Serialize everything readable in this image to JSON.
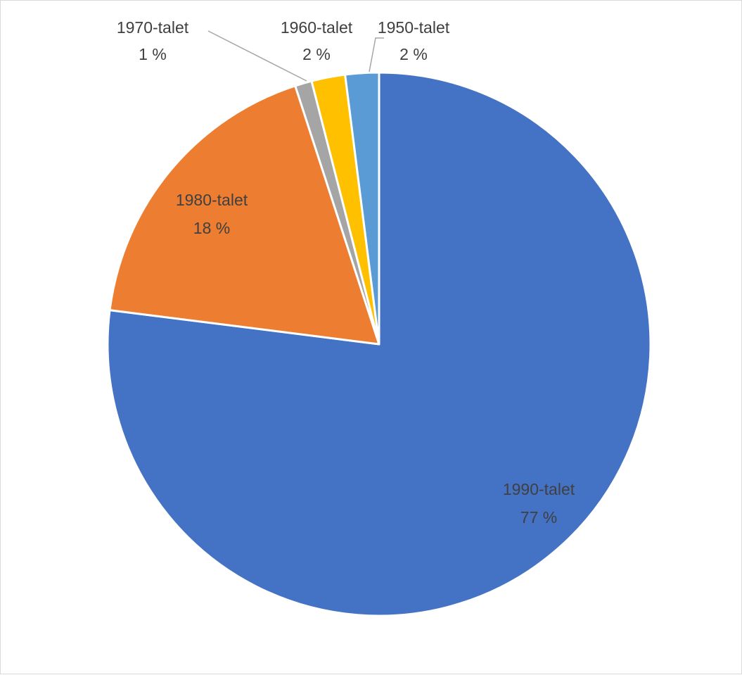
{
  "chart_data": {
    "type": "pie",
    "title": "",
    "slices": [
      {
        "category": "1990-talet",
        "value": 77,
        "label": "77 %",
        "color": "#4472C4"
      },
      {
        "category": "1980-talet",
        "value": 18,
        "label": "18 %",
        "color": "#ED7D31"
      },
      {
        "category": "1970-talet",
        "value": 1,
        "label": "1 %",
        "color": "#A5A5A5"
      },
      {
        "category": "1960-talet",
        "value": 2,
        "label": "2 %",
        "color": "#FFC000"
      },
      {
        "category": "1950-talet",
        "value": 2,
        "label": "2 %",
        "color": "#5B9BD5"
      }
    ],
    "start_angle": "12 o'clock",
    "direction": "clockwise",
    "legend": "none"
  }
}
